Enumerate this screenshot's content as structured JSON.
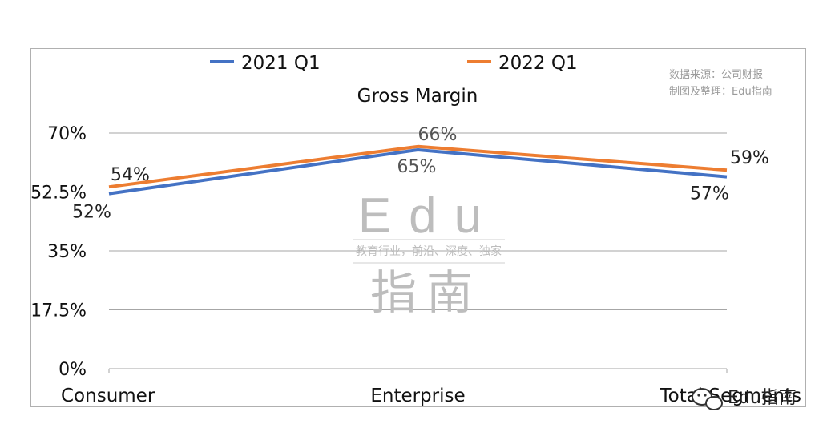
{
  "source": {
    "line1": "数据来源：公司财报",
    "line2": "制图及整理：Edu指南"
  },
  "watermark": {
    "big": "Edu",
    "sub": "教育行业，前沿、深度、独家",
    "bottom": "指南"
  },
  "corner_badge": {
    "text": "Edu指南",
    "icon": "wechat-icon"
  },
  "chart_data": {
    "type": "line",
    "title": "Gross Margin",
    "categories": [
      "Consumer",
      "Enterprise",
      "Total Segments"
    ],
    "series": [
      {
        "name": "2021 Q1",
        "values": [
          52,
          65,
          57
        ],
        "labels": [
          "52%",
          "65%",
          "57%"
        ],
        "color": "#4472c4"
      },
      {
        "name": "2022 Q1",
        "values": [
          54,
          66,
          59
        ],
        "labels": [
          "54%",
          "66%",
          "59%"
        ],
        "color": "#ed7d31"
      }
    ],
    "ylim": [
      0,
      70
    ],
    "yticks": [
      0,
      17.5,
      35,
      52.5,
      70
    ],
    "ytick_labels": [
      "0%",
      "17.5%",
      "35%",
      "52.5%",
      "70%"
    ],
    "grid": true,
    "legend": "top"
  }
}
